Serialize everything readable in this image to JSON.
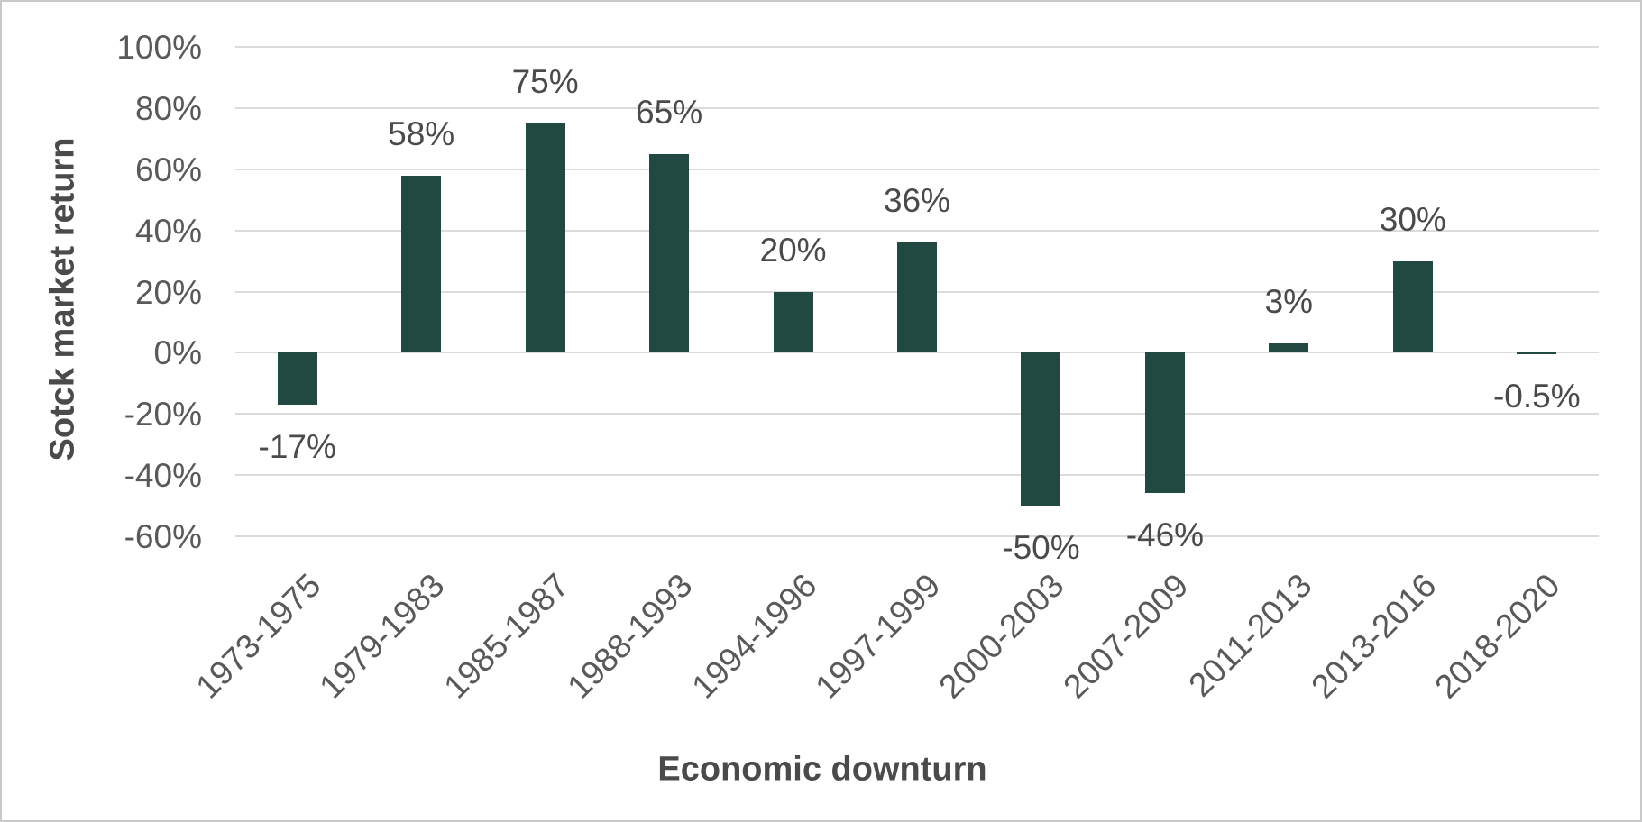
{
  "chart_data": {
    "type": "bar",
    "title": "",
    "xlabel": "Economic downturn",
    "ylabel": "Sotck market return",
    "categories": [
      "1973-1975",
      "1979-1983",
      "1985-1987",
      "1988-1993",
      "1994-1996",
      "1997-1999",
      "2000-2003",
      "2007-2009",
      "2011-2013",
      "2013-2016",
      "2018-2020"
    ],
    "values": [
      -17,
      58,
      75,
      65,
      20,
      36,
      -50,
      -46,
      3,
      30,
      -0.5
    ],
    "data_labels": [
      "-17%",
      "58%",
      "75%",
      "65%",
      "20%",
      "36%",
      "-50%",
      "-46%",
      "3%",
      "30%",
      "-0.5%"
    ],
    "ylim": [
      -60,
      100
    ],
    "ytick_step": 20,
    "yticks": [
      "100%",
      "80%",
      "60%",
      "40%",
      "20%",
      "0%",
      "-20%",
      "-40%",
      "-60%"
    ],
    "grid": true,
    "legend": false,
    "bar_color": "#214941",
    "gridline_color": "#dbdbdb",
    "tick_label_color": "#595959",
    "data_label_color": "#4a4a4a",
    "axis_title_color": "#4a4a4a"
  }
}
